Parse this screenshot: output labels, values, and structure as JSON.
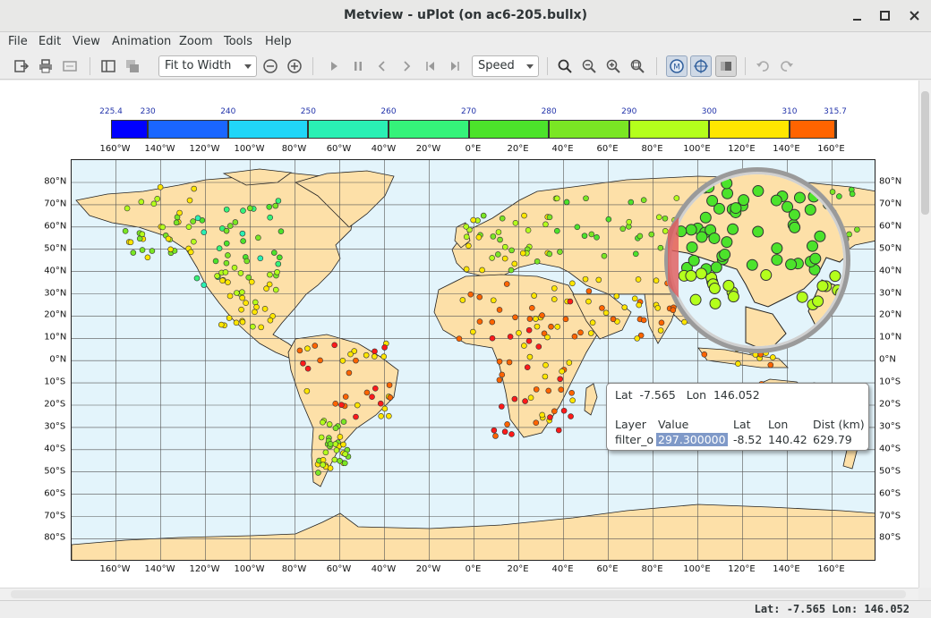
{
  "window": {
    "title": "Metview - uPlot (on ac6-205.bullx)"
  },
  "menu": [
    "File",
    "Edit",
    "View",
    "Animation",
    "Zoom",
    "Tools",
    "Help"
  ],
  "toolbar": {
    "zoom_select": "Fit to Width",
    "speed_select": "Speed"
  },
  "colorbar": {
    "labels": [
      "225.4",
      "230",
      "240",
      "250",
      "260",
      "270",
      "280",
      "290",
      "300",
      "310",
      "315.7"
    ],
    "colors": [
      "#0000ff",
      "#1a66ff",
      "#21d6f8",
      "#2af0b4",
      "#35f37a",
      "#4ce32b",
      "#7ae624",
      "#b4ff1c",
      "#ffe600",
      "#ff6400",
      "#ff1a1a"
    ]
  },
  "lon_labels": [
    "160°W",
    "140°W",
    "120°W",
    "100°W",
    "80°W",
    "60°W",
    "40°W",
    "20°W",
    "0°E",
    "20°E",
    "40°E",
    "60°E",
    "80°E",
    "100°E",
    "120°E",
    "140°E",
    "160°E"
  ],
  "lat_labels": [
    "80°N",
    "70°N",
    "60°N",
    "50°N",
    "40°N",
    "30°N",
    "20°N",
    "10°N",
    "0°N",
    "10°S",
    "20°S",
    "30°S",
    "40°S",
    "50°S",
    "60°S",
    "70°S",
    "80°S"
  ],
  "tooltip": {
    "lat_label": "Lat",
    "lat": "-7.565",
    "lon_label": "Lon",
    "lon": "146.052",
    "headers": [
      "Layer",
      "Value",
      "Lat",
      "Lon",
      "Dist (km)"
    ],
    "row": [
      "filter_o",
      "297.300000",
      "-8.52",
      "140.42",
      "629.79"
    ]
  },
  "status": "Lat: -7.565 Lon: 146.052",
  "colors": {
    "land": "#fde0a8",
    "ocean": "#e3f4fb"
  }
}
